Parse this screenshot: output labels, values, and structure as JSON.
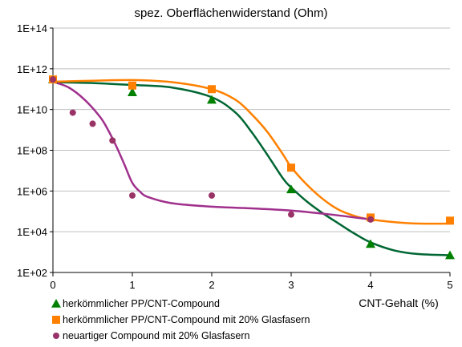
{
  "chart_data": {
    "type": "scatter",
    "title": "spez. Oberflächenwiderstand (Ohm)",
    "xlabel": "CNT-Gehalt (%)",
    "ylabel": "",
    "x_ticks": [
      0,
      1,
      2,
      3,
      4,
      5
    ],
    "y_ticks": [
      "1E+02",
      "1E+04",
      "1E+06",
      "1E+08",
      "1E+10",
      "1E+12",
      "1E+14"
    ],
    "xlim": [
      0,
      5
    ],
    "ylim": [
      100,
      100000000000000
    ],
    "y_scale": "log",
    "grid": "horizontal",
    "legend_position": "bottom-left",
    "series": [
      {
        "name": "herkömmlicher PP/CNT-Compound",
        "marker": "triangle",
        "color": "#008000",
        "line_color": "#006633",
        "x": [
          0,
          1,
          2,
          3,
          4,
          5
        ],
        "y": [
          300000000000,
          70000000000,
          30000000000,
          1200000,
          2500,
          700
        ],
        "fit_x": [
          0,
          0.5,
          1,
          1.5,
          2,
          2.3,
          2.5,
          2.7,
          2.9,
          3.0,
          3.2,
          3.4,
          3.6,
          3.8,
          4.0,
          4.3,
          4.6,
          5.0
        ],
        "fit_y": [
          220000000000,
          200000000000,
          160000000000,
          120000000000,
          40000000000,
          7000000000,
          800000000,
          60000000,
          4000000,
          1500000,
          300000,
          80000,
          25000,
          8000,
          3000,
          1200,
          800,
          700
        ]
      },
      {
        "name": "herkömmlicher PP/CNT-Compound mit 20% Glasfasern",
        "marker": "square",
        "color": "#ff8000",
        "line_color": "#ff8000",
        "x": [
          0,
          1,
          2,
          3,
          4,
          5
        ],
        "y": [
          300000000000,
          150000000000,
          100000000000,
          14000000,
          50000,
          35000
        ],
        "fit_x": [
          0,
          0.5,
          1,
          1.5,
          2,
          2.3,
          2.5,
          2.7,
          2.9,
          3.0,
          3.2,
          3.4,
          3.6,
          3.8,
          4.0,
          4.5,
          5.0
        ],
        "fit_y": [
          230000000000,
          260000000000,
          280000000000,
          220000000000,
          100000000000,
          30000000000,
          6000000000,
          800000000,
          60000000,
          15000000,
          2000000,
          400000,
          120000,
          60000,
          40000,
          26000,
          25000
        ]
      },
      {
        "name": "neuartiger Compound mit 20% Glasfasern",
        "marker": "circle",
        "color": "#993366",
        "line_color": "#a0308c",
        "x": [
          0,
          0.25,
          0.5,
          0.75,
          1,
          2,
          3,
          4
        ],
        "y": [
          300000000000,
          7000000000,
          2000000000,
          300000000,
          600000,
          600000,
          70000,
          40000
        ],
        "fit_x": [
          0,
          0.2,
          0.4,
          0.6,
          0.7,
          0.8,
          0.9,
          1.0,
          1.1,
          1.2,
          1.5,
          2.0,
          2.5,
          3.0,
          3.5,
          4.0
        ],
        "fit_y": [
          230000000000,
          120000000000,
          30000000000,
          4000000000,
          900000000,
          150000000,
          20000000,
          2500000,
          900000,
          500000,
          250000,
          170000,
          140000,
          110000,
          70000,
          40000
        ]
      }
    ]
  }
}
